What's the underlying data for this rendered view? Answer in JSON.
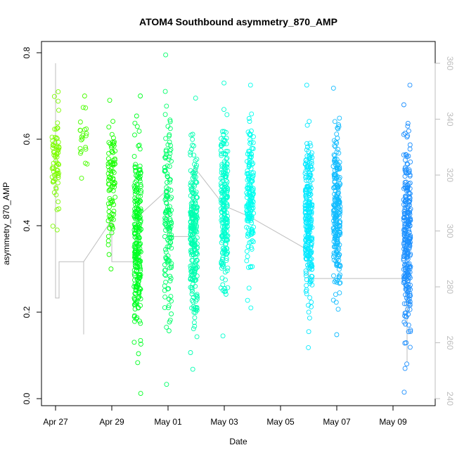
{
  "chart_data": {
    "type": "scatter",
    "title": "ATOM4 Southbound asymmetry_870_AMP",
    "xlabel": "Date",
    "ylabel": "asymmetry_870_AMP",
    "xlim": [
      "2024-04-26T12:00",
      "2024-05-10T12:00"
    ],
    "ylim": [
      0,
      0.8
    ],
    "y2lim": [
      240,
      360
    ],
    "x_ticks": [
      {
        "date": "2024-04-27T00:00",
        "label": "Apr 27"
      },
      {
        "date": "2024-04-29T00:00",
        "label": "Apr 29"
      },
      {
        "date": "2024-05-01T00:00",
        "label": "May 01"
      },
      {
        "date": "2024-05-03T00:00",
        "label": "May 03"
      },
      {
        "date": "2024-05-05T00:00",
        "label": "May 05"
      },
      {
        "date": "2024-05-07T00:00",
        "label": "May 07"
      },
      {
        "date": "2024-05-09T00:00",
        "label": "May 09"
      }
    ],
    "y_ticks": [
      {
        "value": 0.0,
        "label": "0.0"
      },
      {
        "value": 0.2,
        "label": "0.2"
      },
      {
        "value": 0.4,
        "label": "0.4"
      },
      {
        "value": 0.6,
        "label": "0.6"
      },
      {
        "value": 0.8,
        "label": "0.8"
      }
    ],
    "y2_ticks": [
      {
        "value": 240,
        "label": "240"
      },
      {
        "value": 260,
        "label": "260"
      },
      {
        "value": 280,
        "label": "280"
      },
      {
        "value": 300,
        "label": "300"
      },
      {
        "value": 320,
        "label": "320"
      },
      {
        "value": 340,
        "label": "340"
      },
      {
        "value": 360,
        "label": "360"
      }
    ],
    "grid": false,
    "legend": false,
    "series": [
      {
        "marker": "open-circle",
        "color_gradient": [
          "#7cfc00",
          "#00ff00",
          "#00ffb0",
          "#00ffff",
          "#1e90ff"
        ],
        "clusters": [
          {
            "x": "2024-04-27T00:00",
            "y_min": 0.39,
            "y_max": 0.71,
            "count": 70
          },
          {
            "x": "2024-04-28T00:00",
            "y_min": 0.51,
            "y_max": 0.7,
            "count": 22
          },
          {
            "x": "2024-04-29T00:00",
            "y_min": 0.3,
            "y_max": 0.69,
            "count": 90
          },
          {
            "x": "2024-04-29T22:00",
            "y_min": 0.012,
            "y_max": 0.7,
            "count": 260
          },
          {
            "x": "2024-05-01T00:00",
            "y_min": 0.033,
            "y_max": 0.795,
            "count": 150
          },
          {
            "x": "2024-05-01T22:00",
            "y_min": 0.068,
            "y_max": 0.695,
            "count": 250
          },
          {
            "x": "2024-05-03T00:00",
            "y_min": 0.145,
            "y_max": 0.73,
            "count": 220
          },
          {
            "x": "2024-05-03T22:00",
            "y_min": 0.21,
            "y_max": 0.725,
            "count": 170
          },
          {
            "x": "2024-05-06T00:00",
            "y_min": 0.118,
            "y_max": 0.725,
            "count": 260
          },
          {
            "x": "2024-05-07T00:00",
            "y_min": 0.148,
            "y_max": 0.718,
            "count": 230
          },
          {
            "x": "2024-05-09T12:00",
            "y_min": 0.015,
            "y_max": 0.725,
            "count": 280
          }
        ]
      },
      {
        "type": "line",
        "axis": "right",
        "color": "#bdbdbd",
        "points": [
          {
            "x": "2024-04-27T00:00",
            "y": 360
          },
          {
            "x": "2024-04-27T00:00",
            "y": 276
          },
          {
            "x": "2024-04-27T03:00",
            "y": 276
          },
          {
            "x": "2024-04-27T03:00",
            "y": 289
          },
          {
            "x": "2024-04-28T00:00",
            "y": 289
          },
          {
            "x": "2024-04-28T00:00",
            "y": 263
          },
          {
            "x": "2024-04-28T00:00",
            "y": 289
          },
          {
            "x": "2024-04-29T00:00",
            "y": 304
          },
          {
            "x": "2024-04-29T00:00",
            "y": 289
          },
          {
            "x": "2024-04-29T22:00",
            "y": 289
          },
          {
            "x": "2024-04-29T22:00",
            "y": 305
          },
          {
            "x": "2024-05-01T00:00",
            "y": 315
          },
          {
            "x": "2024-05-01T00:00",
            "y": 298
          },
          {
            "x": "2024-05-01T22:00",
            "y": 298
          },
          {
            "x": "2024-05-01T22:00",
            "y": 323
          },
          {
            "x": "2024-05-03T00:00",
            "y": 309
          },
          {
            "x": "2024-05-03T22:00",
            "y": 305
          },
          {
            "x": "2024-05-06T00:00",
            "y": 293
          },
          {
            "x": "2024-05-06T00:00",
            "y": 283
          },
          {
            "x": "2024-05-09T12:00",
            "y": 283
          },
          {
            "x": "2024-05-09T12:00",
            "y": 253
          }
        ]
      }
    ]
  }
}
